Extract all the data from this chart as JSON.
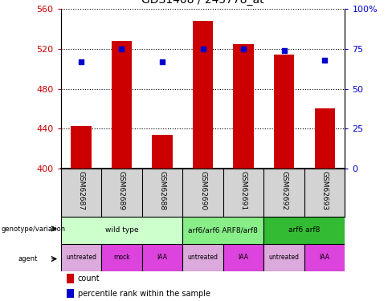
{
  "title": "GDS1408 / 245778_at",
  "samples": [
    "GSM62687",
    "GSM62689",
    "GSM62688",
    "GSM62690",
    "GSM62691",
    "GSM62692",
    "GSM62693"
  ],
  "bar_values": [
    443,
    528,
    434,
    548,
    525,
    514,
    460
  ],
  "bar_base": 400,
  "percentile_values": [
    67,
    75,
    67,
    75,
    75,
    74,
    68
  ],
  "ylim_left": [
    400,
    560
  ],
  "ylim_right": [
    0,
    100
  ],
  "yticks_left": [
    400,
    440,
    480,
    520,
    560
  ],
  "yticks_right": [
    0,
    25,
    50,
    75,
    100
  ],
  "bar_color": "#cc0000",
  "percentile_color": "#0000cc",
  "geno_colors": [
    "#ccffcc",
    "#88ee88",
    "#33bb33"
  ],
  "geno_groups": [
    {
      "label": "wild type",
      "start": 0,
      "end": 2
    },
    {
      "label": "arf6/arf6 ARF8/arf8",
      "start": 3,
      "end": 4
    },
    {
      "label": "arf6 arf8",
      "start": 5,
      "end": 6
    }
  ],
  "agent_labels": [
    "untreated",
    "mock",
    "IAA",
    "untreated",
    "IAA",
    "untreated",
    "IAA"
  ],
  "agent_colors": [
    "#ddaadd",
    "#dd44dd",
    "#dd44dd",
    "#ddaadd",
    "#dd44dd",
    "#ddaadd",
    "#dd44dd"
  ],
  "legend_count_color": "#cc0000",
  "legend_percentile_color": "#0000cc",
  "left_tick_color": "#cc0000",
  "right_tick_color": "#0000cc",
  "sample_bg_color": "#d3d3d3"
}
